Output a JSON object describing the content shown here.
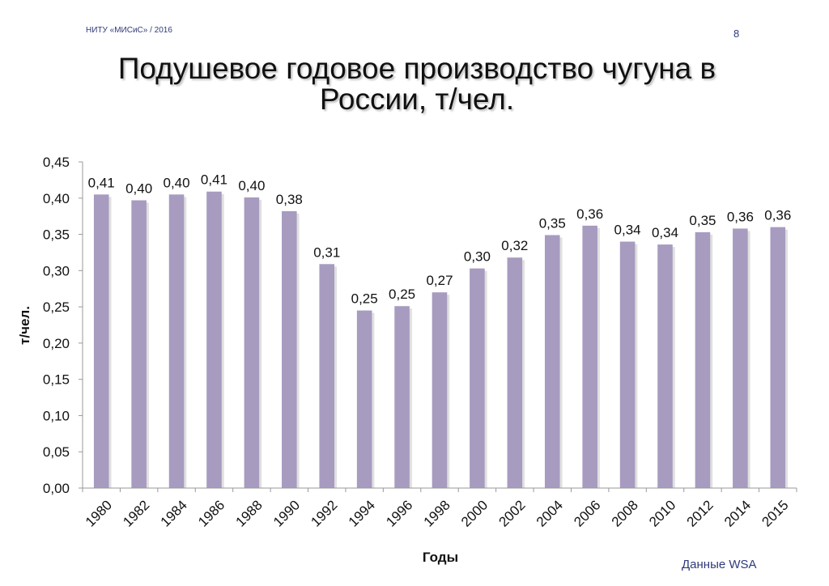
{
  "header": {
    "org": "НИТУ «МИСиС» / 2016",
    "page_number": "8"
  },
  "footer": {
    "source": "Данные WSA"
  },
  "chart_data": {
    "type": "bar",
    "title": "Подушевое годовое производство чугуна в России, т/чел.",
    "xlabel": "Годы",
    "ylabel": "т/чел.",
    "ylim": [
      0,
      0.45
    ],
    "ytick_step": 0.05,
    "yticks": [
      "0,00",
      "0,05",
      "0,10",
      "0,15",
      "0,20",
      "0,25",
      "0,30",
      "0,35",
      "0,40",
      "0,45"
    ],
    "grid": false,
    "bar_color": "#a79bc0",
    "categories": [
      "1980",
      "1982",
      "1984",
      "1986",
      "1988",
      "1990",
      "1992",
      "1994",
      "1996",
      "1998",
      "2000",
      "2002",
      "2004",
      "2006",
      "2008",
      "2010",
      "2012",
      "2014",
      "2015"
    ],
    "values": [
      0.405,
      0.397,
      0.405,
      0.409,
      0.401,
      0.382,
      0.309,
      0.245,
      0.251,
      0.27,
      0.303,
      0.318,
      0.349,
      0.362,
      0.34,
      0.336,
      0.353,
      0.358,
      0.36
    ],
    "data_labels": [
      "0,41",
      "0,40",
      "0,40",
      "0,41",
      "0,40",
      "0,38",
      "0,31",
      "0,25",
      "0,25",
      "0,27",
      "0,30",
      "0,32",
      "0,35",
      "0,36",
      "0,34",
      "0,34",
      "0,35",
      "0,36",
      "0,36"
    ]
  }
}
